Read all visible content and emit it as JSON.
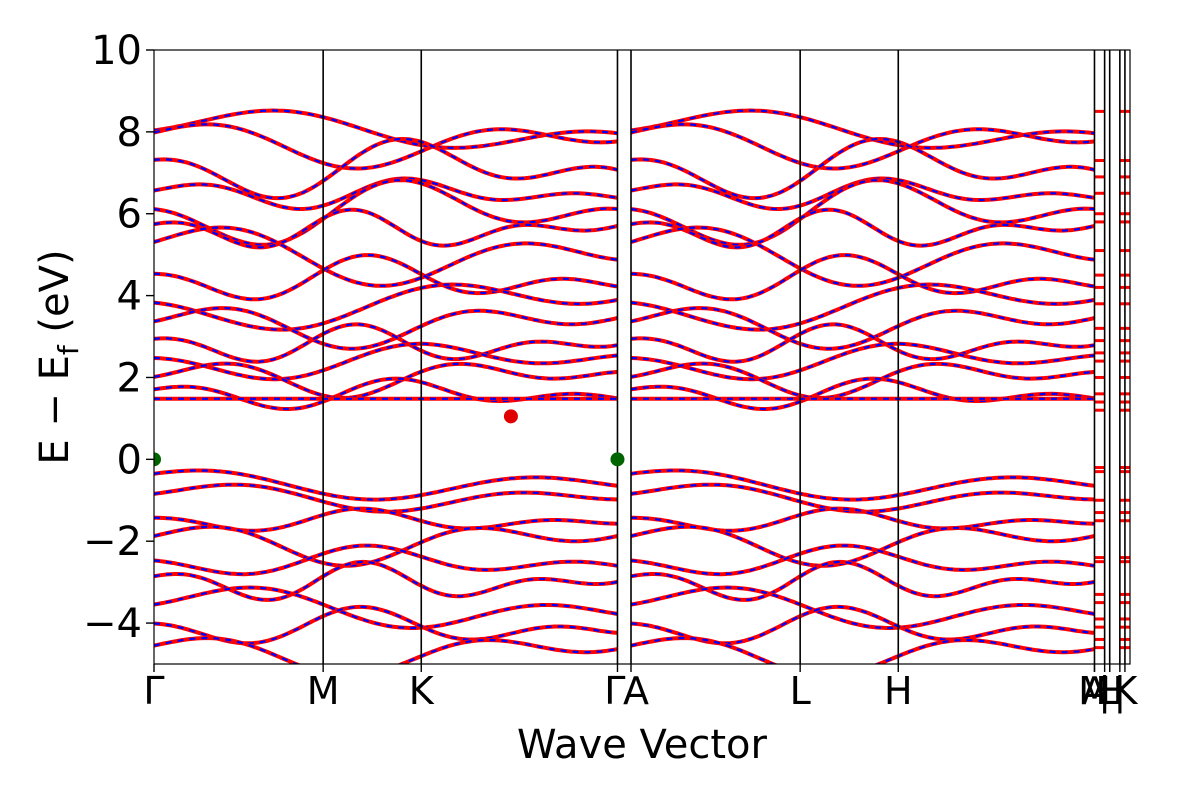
{
  "chart_data": {
    "type": "line",
    "title": "",
    "xlabel": "Wave Vector",
    "ylabel_main": "E − E",
    "ylabel_sub": "f",
    "ylabel_unit": " (eV)",
    "ylim": [
      -5,
      10
    ],
    "yticks": [
      {
        "value": 10,
        "label": "10"
      },
      {
        "value": 8,
        "label": "8"
      },
      {
        "value": 6,
        "label": "6"
      },
      {
        "value": 4,
        "label": "4"
      },
      {
        "value": 2,
        "label": "2"
      },
      {
        "value": 0,
        "label": "0"
      },
      {
        "value": -2,
        "label": "−2"
      },
      {
        "value": -4,
        "label": "−4"
      }
    ],
    "kpath_length": 5.77,
    "kpoints": [
      {
        "label": "Γ",
        "x": 0
      },
      {
        "label": "M",
        "x": 1.0
      },
      {
        "label": "K",
        "x": 1.58
      },
      {
        "label": "Γ",
        "x": 2.74
      },
      {
        "label": "A",
        "x": 2.82
      },
      {
        "label": "L",
        "x": 3.82
      },
      {
        "label": "H",
        "x": 4.4
      },
      {
        "label": "A",
        "x": 5.56
      },
      {
        "label": "M",
        "x": 5.56
      },
      {
        "label": "|",
        "x": 5.62
      },
      {
        "label": "H",
        "x": 5.65
      },
      {
        "label": "L",
        "x": 5.65
      },
      {
        "label": "|",
        "x": 5.71
      },
      {
        "label": "K",
        "x": 5.74
      }
    ],
    "segments": [
      [
        0,
        2.74
      ],
      [
        2.82,
        5.56
      ]
    ],
    "bands": [
      {
        "base": 8.0,
        "amp": 0.6,
        "freq": 1.0,
        "phase": 0.2
      },
      {
        "base": 7.8,
        "amp": 0.7,
        "freq": 1.3,
        "phase": 1.1
      },
      {
        "base": 7.1,
        "amp": 0.8,
        "freq": 1.7,
        "phase": 2.0
      },
      {
        "base": 6.5,
        "amp": 0.4,
        "freq": 2.1,
        "phase": 0.6
      },
      {
        "base": 6.0,
        "amp": 0.9,
        "freq": 1.5,
        "phase": 2.7
      },
      {
        "base": 5.6,
        "amp": 0.5,
        "freq": 2.4,
        "phase": 1.4
      },
      {
        "base": 5.1,
        "amp": 0.9,
        "freq": 1.2,
        "phase": 0.9
      },
      {
        "base": 4.4,
        "amp": 0.6,
        "freq": 1.9,
        "phase": 2.3
      },
      {
        "base": 3.8,
        "amp": 0.7,
        "freq": 1.1,
        "phase": 3.0
      },
      {
        "base": 3.3,
        "amp": 0.6,
        "freq": 1.6,
        "phase": 0.4
      },
      {
        "base": 2.8,
        "amp": 0.5,
        "freq": 2.2,
        "phase": 1.8
      },
      {
        "base": 2.4,
        "amp": 0.5,
        "freq": 1.4,
        "phase": 2.6
      },
      {
        "base": 2.0,
        "amp": 0.5,
        "freq": 1.8,
        "phase": 0.1
      },
      {
        "base": 1.6,
        "amp": 0.4,
        "freq": 2.0,
        "phase": 1.2
      },
      {
        "base": 1.48,
        "amp": 0.0,
        "freq": 1.0,
        "phase": 0.0
      },
      {
        "base": -0.5,
        "amp": 0.5,
        "freq": 1.0,
        "phase": 1.6
      },
      {
        "base": -0.9,
        "amp": 0.4,
        "freq": 1.3,
        "phase": 0.5
      },
      {
        "base": -1.5,
        "amp": 0.3,
        "freq": 2.0,
        "phase": 2.2
      },
      {
        "base": -2.0,
        "amp": 0.6,
        "freq": 1.5,
        "phase": 0.8
      },
      {
        "base": -2.5,
        "amp": 0.4,
        "freq": 1.7,
        "phase": 2.9
      },
      {
        "base": -3.0,
        "amp": 0.5,
        "freq": 2.3,
        "phase": 1.3
      },
      {
        "base": -3.6,
        "amp": 0.6,
        "freq": 1.2,
        "phase": 0.3
      },
      {
        "base": -4.1,
        "amp": 0.5,
        "freq": 1.9,
        "phase": 2.5
      },
      {
        "base": -4.7,
        "amp": 0.6,
        "freq": 1.4,
        "phase": 1.0
      }
    ],
    "extrema_points": [
      {
        "name": "vbm-gamma",
        "x": 0.0,
        "y": 0.0,
        "color": "#006400"
      },
      {
        "name": "vbm-gamma-2",
        "x": 2.74,
        "y": 0.0,
        "color": "#006400"
      },
      {
        "name": "cbm",
        "x": 2.11,
        "y": 1.05,
        "color": "#e00000"
      }
    ],
    "short_lines": [
      8.5,
      7.3,
      6.9,
      6.5,
      6.0,
      5.8,
      5.1,
      4.5,
      4.2,
      3.8,
      3.2,
      2.9,
      2.6,
      2.4,
      2.0,
      1.6,
      1.4,
      1.2,
      -0.2,
      -0.3,
      -1.0,
      -1.3,
      -1.5,
      -2.4,
      -2.5,
      -3.3,
      -3.5,
      -3.9,
      -4.1,
      -4.4,
      -4.6
    ],
    "colors": {
      "spin_up": "#ff0000",
      "spin_down": "#0000ff",
      "axis": "#000000"
    }
  }
}
